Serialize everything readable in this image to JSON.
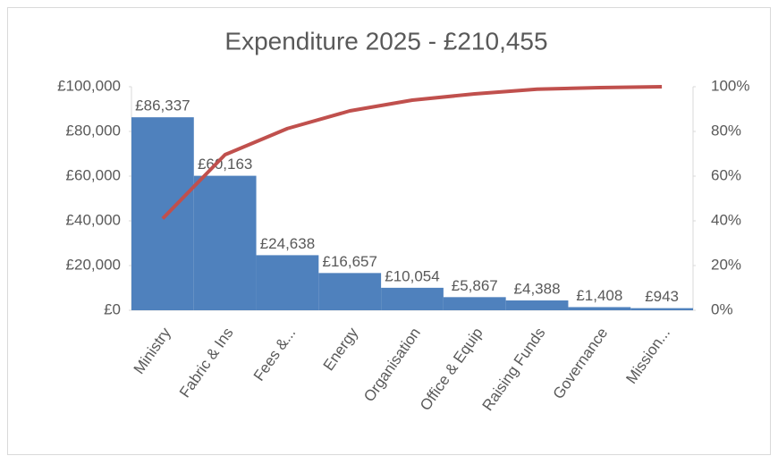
{
  "chart_data": {
    "type": "pareto",
    "title": "Expenditure 2025 - £210,455",
    "categories": [
      "Ministry",
      "Fabric & Ins",
      "Fees &...",
      "Energy",
      "Organisation",
      "Office & Equip",
      "Raising Funds",
      "Governance",
      "Mission..."
    ],
    "series": [
      {
        "color": "#4f81bd",
        "values": [
          86337,
          60163,
          24638,
          16657,
          10054,
          5867,
          4388,
          1408,
          943
        ],
        "value_labels": [
          "£86,337",
          "£60,163",
          "£24,638",
          "£16,657",
          "£10,054",
          "£5,867",
          "£4,388",
          "£1,408",
          "£943"
        ]
      },
      {
        "color": "#c0504d",
        "axis": "y2",
        "values": [
          41.0,
          69.6,
          81.3,
          89.2,
          94.0,
          96.8,
          98.9,
          99.6,
          100
        ]
      }
    ],
    "ylim": [
      0,
      100000
    ],
    "yticks": [
      {
        "value": 0,
        "label": "£0"
      },
      {
        "value": 20000,
        "label": "£20,000"
      },
      {
        "value": 40000,
        "label": "£40,000"
      },
      {
        "value": 60000,
        "label": "£60,000"
      },
      {
        "value": 80000,
        "label": "£80,000"
      },
      {
        "value": 100000,
        "label": "£100,000"
      }
    ],
    "y2lim": [
      0,
      100
    ],
    "y2ticks": [
      {
        "value": 0,
        "label": "0%"
      },
      {
        "value": 20,
        "label": "20%"
      },
      {
        "value": 40,
        "label": "40%"
      },
      {
        "value": 60,
        "label": "60%"
      },
      {
        "value": 80,
        "label": "80%"
      },
      {
        "value": 100,
        "label": "100%"
      }
    ],
    "grid": false
  }
}
